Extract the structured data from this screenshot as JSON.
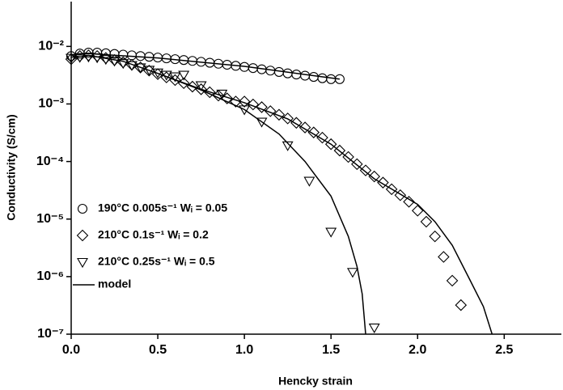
{
  "chart_data": {
    "type": "scatter",
    "xlabel": "Hencky strain",
    "ylabel": "Conductivity (S/cm)",
    "xlim": [
      0,
      2.83
    ],
    "ylim": [
      1e-07,
      0.06
    ],
    "ylog": true,
    "xticks": [
      {
        "value": 0,
        "label": "0.0"
      },
      0.5,
      {
        "value": 1,
        "label": "1.0"
      },
      1.5,
      {
        "value": 2,
        "label": "2.0"
      },
      2.5
    ],
    "yticks": [
      {
        "value": 1e-07,
        "label": "10⁻⁷"
      },
      {
        "value": 1e-06,
        "label": "10⁻⁶"
      },
      {
        "value": 1e-05,
        "label": "10⁻⁵"
      },
      {
        "value": 0.0001,
        "label": "10⁻⁴"
      },
      {
        "value": 0.001,
        "label": "10⁻³"
      },
      {
        "value": 0.01,
        "label": "10⁻²"
      }
    ],
    "legend_position": "center left",
    "series": [
      {
        "name": "190°C 0.005s⁻¹  Wᵢ = 0.05",
        "marker": "circle",
        "color": "#000000",
        "x": [
          0,
          0.05,
          0.1,
          0.15,
          0.2,
          0.25,
          0.3,
          0.35,
          0.4,
          0.45,
          0.5,
          0.55,
          0.6,
          0.65,
          0.7,
          0.75,
          0.8,
          0.85,
          0.9,
          0.95,
          1.0,
          1.05,
          1.1,
          1.15,
          1.2,
          1.25,
          1.3,
          1.35,
          1.4,
          1.45,
          1.5,
          1.55
        ],
        "values": [
          0.0068,
          0.0075,
          0.0078,
          0.0078,
          0.0076,
          0.0074,
          0.0072,
          0.007,
          0.0068,
          0.0066,
          0.0064,
          0.0062,
          0.006,
          0.0058,
          0.0056,
          0.0054,
          0.0052,
          0.005,
          0.0048,
          0.0046,
          0.0044,
          0.0042,
          0.004,
          0.0038,
          0.0036,
          0.0034,
          0.00325,
          0.0031,
          0.00295,
          0.0028,
          0.0027,
          0.0027
        ]
      },
      {
        "name": "210°C 0.1s⁻¹  Wᵢ = 0.2",
        "marker": "diamond",
        "color": "#000000",
        "x": [
          0,
          0.05,
          0.1,
          0.15,
          0.2,
          0.25,
          0.3,
          0.35,
          0.4,
          0.45,
          0.5,
          0.55,
          0.6,
          0.65,
          0.7,
          0.75,
          0.8,
          0.85,
          0.9,
          0.95,
          1.0,
          1.05,
          1.1,
          1.15,
          1.2,
          1.25,
          1.3,
          1.35,
          1.4,
          1.45,
          1.5,
          1.55,
          1.6,
          1.65,
          1.7,
          1.75,
          1.8,
          1.85,
          1.9,
          1.95,
          2.0,
          2.05,
          2.1,
          2.15,
          2.2,
          2.25
        ],
        "values": [
          0.006,
          0.0068,
          0.007,
          0.0068,
          0.0063,
          0.0058,
          0.0053,
          0.0048,
          0.0043,
          0.0038,
          0.0033,
          0.0029,
          0.0026,
          0.0023,
          0.002,
          0.0018,
          0.0016,
          0.0014,
          0.00125,
          0.0011,
          0.0011,
          0.00098,
          0.00088,
          0.00075,
          0.00065,
          0.00056,
          0.00047,
          0.00039,
          0.00032,
          0.00026,
          0.0002,
          0.000155,
          0.00012,
          9e-05,
          7e-05,
          5.5e-05,
          4.3e-05,
          3.3e-05,
          2.6e-05,
          2e-05,
          1.4e-05,
          9e-06,
          5e-06,
          2.2e-06,
          8.5e-07,
          3.2e-07
        ]
      },
      {
        "name": "210°C 0.25s⁻¹ Wᵢ = 0.5",
        "marker": "triangle-down",
        "color": "#000000",
        "x": [
          0,
          0.05,
          0.1,
          0.15,
          0.2,
          0.25,
          0.3,
          0.35,
          0.4,
          0.45,
          0.5,
          0.55,
          0.6,
          0.65,
          0.75,
          0.87,
          1.0,
          1.1,
          1.25,
          1.375,
          1.5,
          1.625,
          1.75
        ],
        "values": [
          0.0063,
          0.0065,
          0.0066,
          0.0064,
          0.006,
          0.0056,
          0.0051,
          0.0047,
          0.0043,
          0.0039,
          0.0035,
          0.0032,
          0.003,
          0.0032,
          0.0021,
          0.0015,
          0.0008,
          0.00049,
          0.00019,
          4.6e-05,
          6e-06,
          1.2e-06,
          1.3e-07
        ]
      },
      {
        "name": "model",
        "marker": "line",
        "color": "#000000",
        "x": [
          0,
          0.1,
          0.5,
          1.0,
          1.55,
          null,
          0,
          0.1,
          0.3,
          0.5,
          0.75,
          1.0,
          1.25,
          1.5,
          1.75,
          2.0,
          2.1,
          2.2,
          2.3,
          2.38,
          2.43,
          null,
          0,
          0.1,
          0.3,
          0.5,
          0.75,
          1.0,
          1.2,
          1.35,
          1.5,
          1.6,
          1.65,
          1.68,
          1.7
        ],
        "values": [
          0.007,
          0.0075,
          0.0063,
          0.0045,
          0.0027,
          null,
          0.0065,
          0.007,
          0.0055,
          0.0034,
          0.0018,
          0.00105,
          0.00055,
          0.0002,
          5e-05,
          1.8e-05,
          9e-06,
          3.5e-06,
          9e-07,
          3e-07,
          1e-07,
          null,
          0.0065,
          0.007,
          0.0055,
          0.0034,
          0.00175,
          0.0008,
          0.0003,
          0.0001,
          2.5e-05,
          5e-06,
          1.5e-06,
          5e-07,
          1e-07
        ]
      }
    ]
  }
}
